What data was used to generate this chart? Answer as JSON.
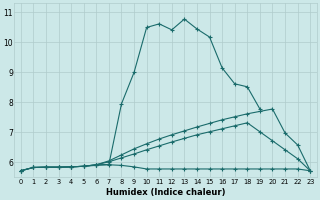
{
  "xlabel": "Humidex (Indice chaleur)",
  "bg_color": "#cce8e8",
  "grid_color": "#b0cccc",
  "line_color": "#1a6b6b",
  "xlim": [
    -0.5,
    23.5
  ],
  "ylim": [
    5.5,
    11.3
  ],
  "xticks": [
    0,
    1,
    2,
    3,
    4,
    5,
    6,
    7,
    8,
    9,
    10,
    11,
    12,
    13,
    14,
    15,
    16,
    17,
    18,
    19,
    20,
    21,
    22,
    23
  ],
  "yticks": [
    6,
    7,
    8,
    9,
    10,
    11
  ],
  "line_flat_x": [
    0,
    1,
    2,
    3,
    4,
    5,
    6,
    7,
    8,
    9,
    10,
    11,
    12,
    13,
    14,
    15,
    16,
    17,
    18,
    19,
    20,
    21,
    22,
    23
  ],
  "line_flat_y": [
    5.72,
    5.83,
    5.84,
    5.84,
    5.85,
    5.87,
    5.9,
    5.92,
    5.9,
    5.85,
    5.78,
    5.78,
    5.78,
    5.78,
    5.78,
    5.78,
    5.78,
    5.78,
    5.78,
    5.78,
    5.78,
    5.78,
    5.78,
    5.72
  ],
  "line_diag1_x": [
    0,
    1,
    2,
    3,
    4,
    5,
    6,
    7,
    8,
    9,
    10,
    11,
    12,
    13,
    14,
    15,
    16,
    17,
    18,
    19,
    20,
    21,
    22,
    23
  ],
  "line_diag1_y": [
    5.72,
    5.83,
    5.84,
    5.84,
    5.85,
    5.87,
    5.92,
    6.02,
    6.15,
    6.28,
    6.42,
    6.55,
    6.68,
    6.8,
    6.92,
    7.02,
    7.12,
    7.22,
    7.32,
    7.02,
    6.72,
    6.42,
    6.12,
    5.72
  ],
  "line_diag2_x": [
    0,
    1,
    2,
    3,
    4,
    5,
    6,
    7,
    8,
    9,
    10,
    11,
    12,
    13,
    14,
    15,
    16,
    17,
    18,
    19,
    20,
    21,
    22,
    23
  ],
  "line_diag2_y": [
    5.72,
    5.83,
    5.84,
    5.84,
    5.85,
    5.87,
    5.92,
    6.05,
    6.25,
    6.45,
    6.62,
    6.78,
    6.92,
    7.05,
    7.18,
    7.3,
    7.42,
    7.52,
    7.62,
    7.7,
    7.78,
    6.98,
    6.58,
    5.72
  ],
  "line_peak_x": [
    0,
    1,
    2,
    3,
    4,
    5,
    6,
    7,
    8,
    9,
    10,
    11,
    12,
    13,
    14,
    15,
    16,
    17,
    18,
    19,
    20,
    21,
    22,
    23
  ],
  "line_peak_y": [
    5.72,
    5.83,
    5.84,
    5.84,
    5.85,
    5.87,
    5.92,
    5.93,
    7.95,
    9.0,
    10.5,
    10.62,
    10.42,
    10.78,
    10.45,
    10.18,
    9.15,
    8.62,
    8.52,
    7.78,
    null,
    null,
    null,
    null
  ]
}
